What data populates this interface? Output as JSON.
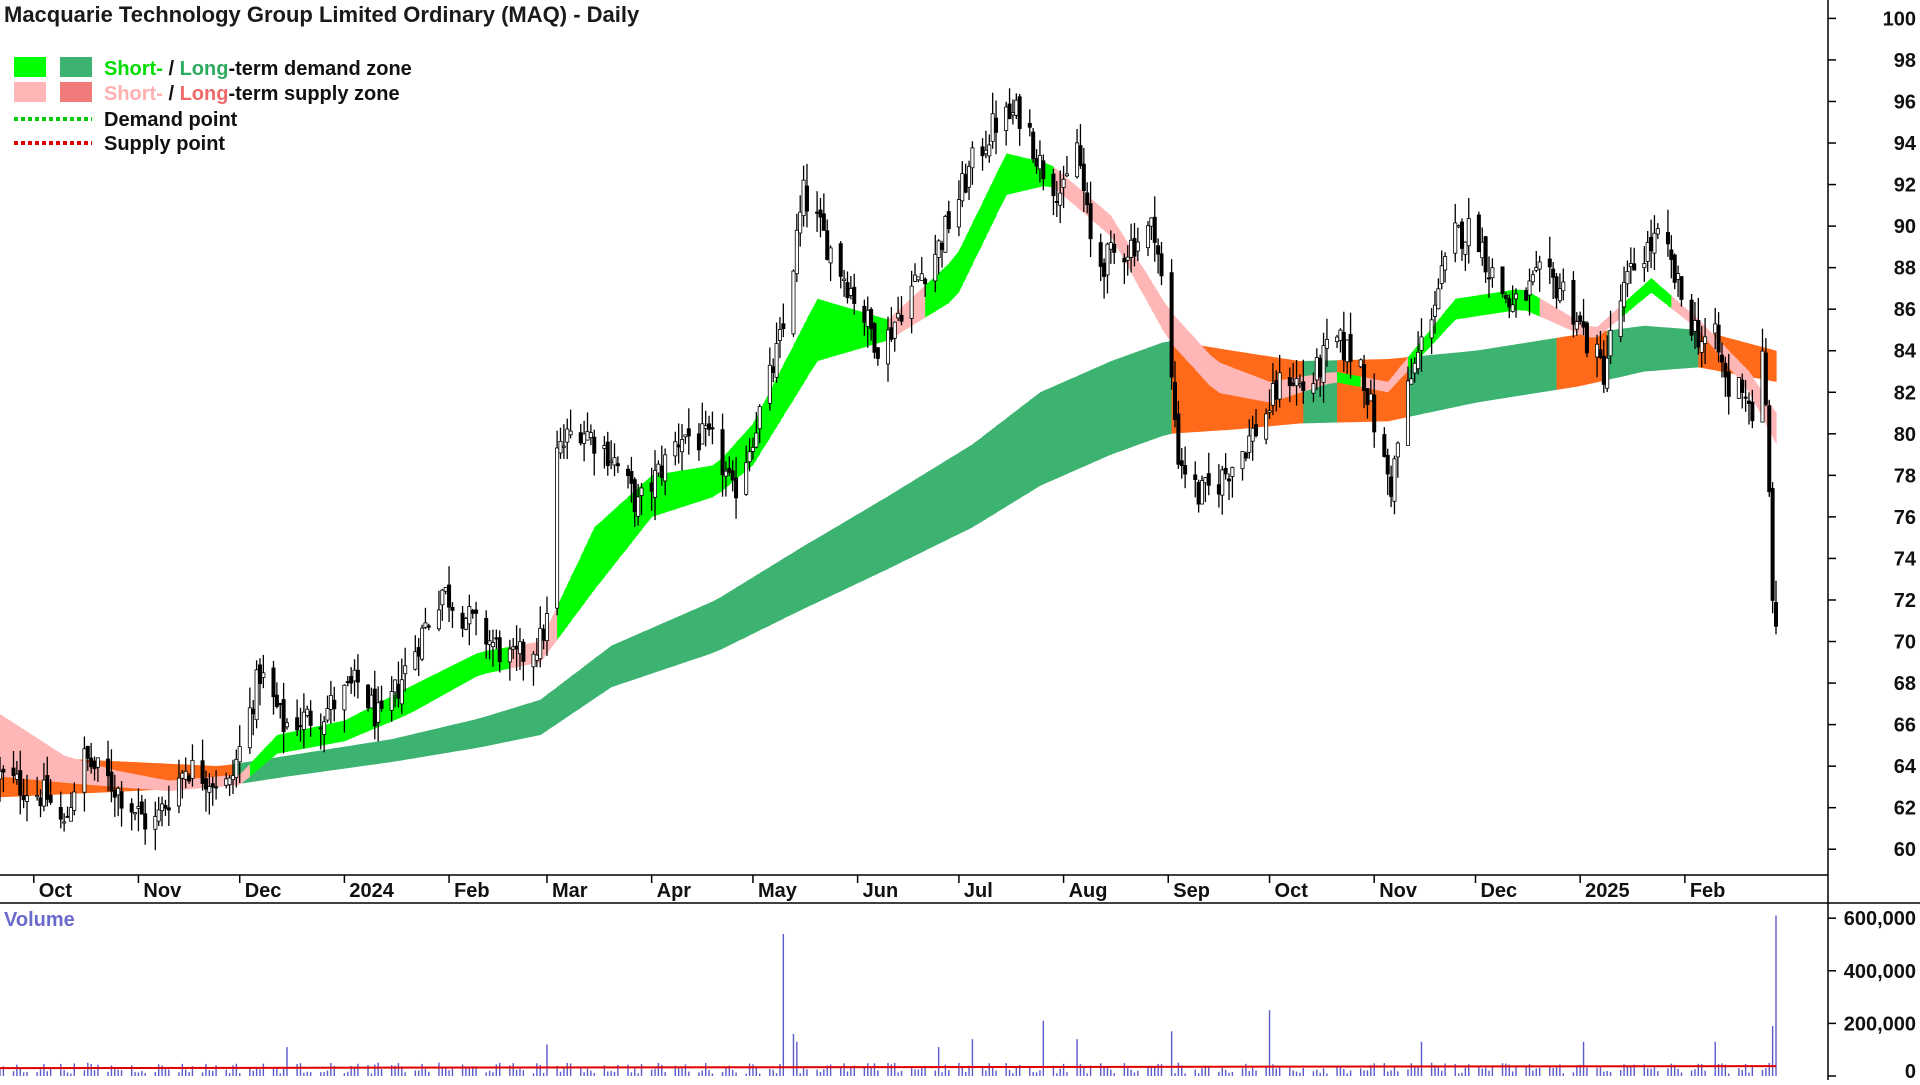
{
  "title": "Macquarie Technology Group Limited Ordinary (MAQ) - Daily",
  "legend": {
    "row1": {
      "short": "Short-",
      "sep": " / ",
      "long": "Long",
      "rest": "-term demand zone"
    },
    "row2": {
      "short": "Short-",
      "sep": " / ",
      "long": "Long",
      "rest": "-term supply zone"
    },
    "demand_point": "Demand point",
    "supply_point": "Supply point"
  },
  "colors": {
    "short_demand": "#00ff00",
    "long_demand": "#3cb371",
    "short_supply": "#ffb6b6",
    "long_supply": "#ff6a1a",
    "demand_point": "#00cc00",
    "supply_point": "#dd0000",
    "candle": "#000000",
    "volume_bar": "#5a5aca",
    "volume_ma": "#e00000",
    "volume_label": "#6a6acd"
  },
  "chart_data": [
    {
      "type": "bar",
      "subtype": "ohlc-price-with-zones",
      "title": "Macquarie Technology Group Limited Ordinary (MAQ) - Daily",
      "x_labels": [
        "Oct",
        "Nov",
        "Dec",
        "2024",
        "Feb",
        "Mar",
        "Apr",
        "May",
        "Jun",
        "Jul",
        "Aug",
        "Sep",
        "Oct",
        "Nov",
        "Dec",
        "2025",
        "Feb"
      ],
      "x_range": [
        "2023-09-21",
        "2025-02-28"
      ],
      "ylim": [
        59,
        100.5
      ],
      "y_ticks": [
        60,
        62,
        64,
        66,
        68,
        70,
        72,
        74,
        76,
        78,
        80,
        82,
        84,
        86,
        88,
        90,
        92,
        94,
        96,
        98,
        100
      ],
      "y_axis_side": "right",
      "price_keypoints": [
        [
          "2023-09-21",
          63.5
        ],
        [
          "2023-10-05",
          62.5
        ],
        [
          "2023-10-10",
          61.0
        ],
        [
          "2023-10-15",
          64.5
        ],
        [
          "2023-10-25",
          63.0
        ],
        [
          "2023-11-05",
          61.0
        ],
        [
          "2023-11-15",
          64.0
        ],
        [
          "2023-11-28",
          63.0
        ],
        [
          "2023-12-03",
          66.0
        ],
        [
          "2023-12-07",
          68.5
        ],
        [
          "2023-12-14",
          66.0
        ],
        [
          "2023-12-25",
          66.5
        ],
        [
          "2024-01-05",
          68.0
        ],
        [
          "2024-01-12",
          66.0
        ],
        [
          "2024-01-20",
          69.0
        ],
        [
          "2024-01-30",
          72.5
        ],
        [
          "2024-02-10",
          70.5
        ],
        [
          "2024-02-20",
          69.0
        ],
        [
          "2024-02-28",
          70.0
        ],
        [
          "2024-03-01",
          71.0
        ],
        [
          "2024-03-04",
          79.0
        ],
        [
          "2024-03-10",
          80.5
        ],
        [
          "2024-03-20",
          79.0
        ],
        [
          "2024-03-28",
          76.5
        ],
        [
          "2024-04-10",
          80.0
        ],
        [
          "2024-04-20",
          79.5
        ],
        [
          "2024-04-25",
          77.0
        ],
        [
          "2024-05-05",
          82.0
        ],
        [
          "2024-05-10",
          85.0
        ],
        [
          "2024-05-16",
          91.5
        ],
        [
          "2024-05-22",
          89.5
        ],
        [
          "2024-05-30",
          87.0
        ],
        [
          "2024-06-08",
          84.0
        ],
        [
          "2024-06-15",
          86.5
        ],
        [
          "2024-06-25",
          89.0
        ],
        [
          "2024-07-05",
          93.0
        ],
        [
          "2024-07-12",
          95.0
        ],
        [
          "2024-07-20",
          95.5
        ],
        [
          "2024-07-25",
          93.0
        ],
        [
          "2024-08-01",
          91.5
        ],
        [
          "2024-08-05",
          94.0
        ],
        [
          "2024-08-10",
          88.0
        ],
        [
          "2024-08-20",
          89.0
        ],
        [
          "2024-08-28",
          90.0
        ],
        [
          "2024-08-31",
          86.0
        ],
        [
          "2024-09-04",
          79.0
        ],
        [
          "2024-09-10",
          77.0
        ],
        [
          "2024-09-15",
          77.5
        ],
        [
          "2024-09-22",
          79.0
        ],
        [
          "2024-09-30",
          81.0
        ],
        [
          "2024-10-06",
          83.0
        ],
        [
          "2024-10-12",
          82.0
        ],
        [
          "2024-10-20",
          84.5
        ],
        [
          "2024-10-28",
          83.5
        ],
        [
          "2024-11-03",
          79.0
        ],
        [
          "2024-11-06",
          77.5
        ],
        [
          "2024-11-10",
          81.5
        ],
        [
          "2024-11-18",
          86.0
        ],
        [
          "2024-11-25",
          89.5
        ],
        [
          "2024-12-01",
          90.0
        ],
        [
          "2024-12-05",
          88.0
        ],
        [
          "2024-12-12",
          86.0
        ],
        [
          "2024-12-20",
          87.5
        ],
        [
          "2024-12-27",
          87.0
        ],
        [
          "2025-01-03",
          84.5
        ],
        [
          "2025-01-08",
          83.0
        ],
        [
          "2025-01-12",
          86.0
        ],
        [
          "2025-01-18",
          88.5
        ],
        [
          "2025-01-25",
          89.5
        ],
        [
          "2025-02-01",
          86.0
        ],
        [
          "2025-02-06",
          84.5
        ],
        [
          "2025-02-10",
          84.5
        ],
        [
          "2025-02-14",
          82.0
        ],
        [
          "2025-02-18",
          82.5
        ],
        [
          "2025-02-22",
          80.5
        ],
        [
          "2025-02-24",
          83.5
        ],
        [
          "2025-02-25",
          81.0
        ],
        [
          "2025-02-26",
          77.0
        ],
        [
          "2025-02-27",
          72.5
        ],
        [
          "2025-02-28",
          70.0
        ]
      ],
      "short_zone_keypoints": [
        [
          "2023-09-21",
          66.5,
          63.5
        ],
        [
          "2023-10-10",
          64.5,
          63.2
        ],
        [
          "2023-10-25",
          63.8,
          63.0
        ],
        [
          "2023-11-10",
          63.3,
          62.8
        ],
        [
          "2023-12-01",
          63.6,
          63.1
        ],
        [
          "2023-12-12",
          65.5,
          64.6
        ],
        [
          "2024-01-01",
          66.2,
          65.2
        ],
        [
          "2024-01-20",
          67.8,
          66.5
        ],
        [
          "2024-02-10",
          69.5,
          68.4
        ],
        [
          "2024-02-28",
          70.0,
          69.0
        ],
        [
          "2024-03-15",
          75.5,
          72.5
        ],
        [
          "2024-04-01",
          78.0,
          76.0
        ],
        [
          "2024-04-20",
          78.5,
          77.0
        ],
        [
          "2024-05-01",
          80.5,
          78.5
        ],
        [
          "2024-05-20",
          86.5,
          83.5
        ],
        [
          "2024-06-10",
          85.5,
          84.5
        ],
        [
          "2024-06-30",
          88.5,
          86.5
        ],
        [
          "2024-07-15",
          93.5,
          91.5
        ],
        [
          "2024-07-28",
          93.0,
          92.0
        ],
        [
          "2024-08-15",
          90.5,
          89.5
        ],
        [
          "2024-09-01",
          86.0,
          84.5
        ],
        [
          "2024-09-15",
          83.5,
          82.0
        ],
        [
          "2024-10-01",
          82.5,
          81.5
        ],
        [
          "2024-10-20",
          83.0,
          82.5
        ],
        [
          "2024-11-05",
          82.5,
          82.0
        ],
        [
          "2024-11-25",
          86.5,
          85.5
        ],
        [
          "2024-12-15",
          87.0,
          86.0
        ],
        [
          "2025-01-05",
          85.0,
          84.5
        ],
        [
          "2025-01-22",
          87.5,
          86.8
        ],
        [
          "2025-02-05",
          85.5,
          85.0
        ],
        [
          "2025-02-20",
          83.0,
          82.0
        ],
        [
          "2025-02-28",
          81.0,
          79.5
        ]
      ],
      "short_zone_supply_periods": [
        [
          "2023-09-21",
          "2023-12-03"
        ],
        [
          "2024-02-18",
          "2024-03-01"
        ],
        [
          "2024-06-08",
          "2024-06-20"
        ],
        [
          "2024-07-28",
          "2024-10-20"
        ],
        [
          "2024-10-28",
          "2024-11-10"
        ],
        [
          "2024-12-20",
          "2025-01-10"
        ],
        [
          "2025-01-28",
          "2025-02-28"
        ]
      ],
      "long_zone_keypoints": [
        [
          "2023-09-21",
          64.5,
          62.5
        ],
        [
          "2023-11-25",
          64.0,
          63.0
        ],
        [
          "2023-12-15",
          64.5,
          63.5
        ],
        [
          "2024-01-15",
          65.3,
          64.2
        ],
        [
          "2024-02-10",
          66.3,
          64.9
        ],
        [
          "2024-02-28",
          67.2,
          65.5
        ],
        [
          "2024-03-20",
          69.8,
          67.8
        ],
        [
          "2024-04-20",
          72.0,
          69.5
        ],
        [
          "2024-05-15",
          74.5,
          71.5
        ],
        [
          "2024-06-10",
          77.0,
          73.5
        ],
        [
          "2024-07-05",
          79.5,
          75.5
        ],
        [
          "2024-07-25",
          82.0,
          77.5
        ],
        [
          "2024-08-15",
          83.5,
          79.0
        ],
        [
          "2024-09-01",
          84.5,
          80.0
        ],
        [
          "2024-09-20",
          84.0,
          80.2
        ],
        [
          "2024-10-10",
          83.5,
          80.5
        ],
        [
          "2024-11-05",
          83.6,
          80.6
        ],
        [
          "2024-12-01",
          84.0,
          81.5
        ],
        [
          "2025-01-01",
          84.8,
          82.3
        ],
        [
          "2025-01-20",
          85.2,
          83.0
        ],
        [
          "2025-02-05",
          85.0,
          83.2
        ],
        [
          "2025-02-28",
          84.0,
          82.5
        ]
      ],
      "long_zone_supply_periods": [
        [
          "2023-09-21",
          "2023-11-28"
        ],
        [
          "2024-09-01",
          "2024-10-10"
        ],
        [
          "2024-10-20",
          "2024-11-10"
        ],
        [
          "2024-12-25",
          "2025-01-08"
        ],
        [
          "2025-02-05",
          "2025-02-28"
        ]
      ]
    },
    {
      "type": "bar",
      "subtype": "volume",
      "label": "Volume",
      "ylim": [
        0,
        650000
      ],
      "y_ticks": [
        "0",
        "200,000",
        "400,000",
        "600,000"
      ],
      "y_tick_values": [
        0,
        200000,
        400000,
        600000
      ],
      "y_axis_side": "right",
      "typical_volume": 30000,
      "moving_average_level": 30000,
      "spikes": [
        [
          "2023-12-15",
          110000
        ],
        [
          "2024-03-01",
          120000
        ],
        [
          "2024-05-05",
          110000
        ],
        [
          "2024-05-10",
          540000
        ],
        [
          "2024-05-13",
          160000
        ],
        [
          "2024-05-14",
          130000
        ],
        [
          "2024-06-25",
          110000
        ],
        [
          "2024-07-05",
          140000
        ],
        [
          "2024-07-26",
          210000
        ],
        [
          "2024-08-05",
          140000
        ],
        [
          "2024-09-02",
          170000
        ],
        [
          "2024-10-01",
          250000
        ],
        [
          "2024-10-05",
          130000
        ],
        [
          "2024-11-15",
          130000
        ],
        [
          "2025-01-02",
          130000
        ],
        [
          "2025-02-10",
          130000
        ],
        [
          "2025-02-27",
          190000
        ],
        [
          "2025-02-28",
          610000
        ]
      ]
    }
  ]
}
